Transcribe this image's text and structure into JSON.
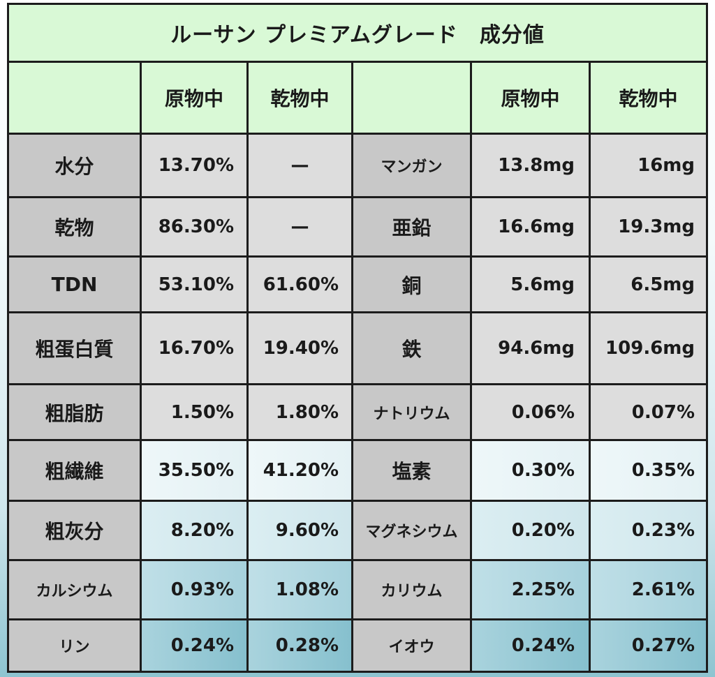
{
  "title": "ルーサン プレミアムグレード　成分値",
  "header": {
    "col1": "原物中",
    "col2": "乾物中",
    "col4": "原物中",
    "col5": "乾物中"
  },
  "rows": [
    {
      "left_label": "水分",
      "left_raw": "13.70%",
      "left_dry": "—",
      "right_label": "マンガン",
      "right_raw": "13.8mg",
      "right_dry": "16mg"
    },
    {
      "left_label": "乾物",
      "left_raw": "86.30%",
      "left_dry": "—",
      "right_label": "亜鉛",
      "right_raw": "16.6mg",
      "right_dry": "19.3mg"
    },
    {
      "left_label": "TDN",
      "left_raw": "53.10%",
      "left_dry": "61.60%",
      "right_label": "銅",
      "right_raw": "5.6mg",
      "right_dry": "6.5mg"
    },
    {
      "left_label": "粗蛋白質",
      "left_raw": "16.70%",
      "left_dry": "19.40%",
      "right_label": "鉄",
      "right_raw": "94.6mg",
      "right_dry": "109.6mg"
    },
    {
      "left_label": "粗脂肪",
      "left_raw": "1.50%",
      "left_dry": "1.80%",
      "right_label": "ナトリウム",
      "right_raw": "0.06%",
      "right_dry": "0.07%"
    },
    {
      "left_label": "粗繊維",
      "left_raw": "35.50%",
      "left_dry": "41.20%",
      "right_label": "塩素",
      "right_raw": "0.30%",
      "right_dry": "0.35%"
    },
    {
      "left_label": "粗灰分",
      "left_raw": "8.20%",
      "left_dry": "9.60%",
      "right_label": "マグネシウム",
      "right_raw": "0.20%",
      "right_dry": "0.23%"
    },
    {
      "left_label": "カルシウム",
      "left_raw": "0.93%",
      "left_dry": "1.08%",
      "right_label": "カリウム",
      "right_raw": "2.25%",
      "right_dry": "2.61%"
    },
    {
      "left_label": "リン",
      "left_raw": "0.24%",
      "left_dry": "0.28%",
      "right_label": "イオウ",
      "right_raw": "0.24%",
      "right_dry": "0.27%"
    }
  ]
}
